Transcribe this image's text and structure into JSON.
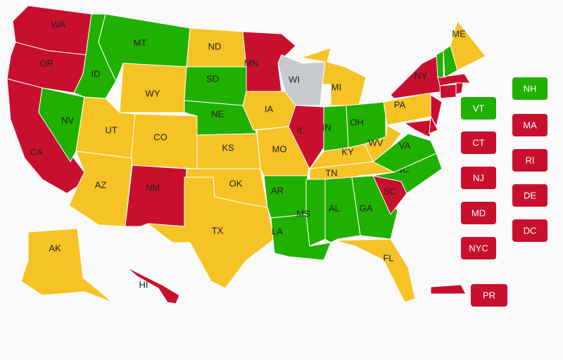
{
  "states": [
    {
      "label": "WA",
      "color": "#c8102e"
    },
    {
      "label": "OR",
      "color": "#c8102e"
    },
    {
      "label": "CA",
      "color": "#c8102e"
    },
    {
      "label": "NV",
      "color": "#20b000"
    },
    {
      "label": "ID",
      "color": "#20b000"
    },
    {
      "label": "MT",
      "color": "#20b000"
    },
    {
      "label": "WY",
      "color": "#f5c325"
    },
    {
      "label": "UT",
      "color": "#f5c325"
    },
    {
      "label": "CO",
      "color": "#f5c325"
    },
    {
      "label": "AZ",
      "color": "#f5c325"
    },
    {
      "label": "NM",
      "color": "#c8102e"
    },
    {
      "label": "ND",
      "color": "#f5c325"
    },
    {
      "label": "SD",
      "color": "#20b000"
    },
    {
      "label": "NE",
      "color": "#20b000"
    },
    {
      "label": "KS",
      "color": "#f5c325"
    },
    {
      "label": "OK",
      "color": "#f5c325"
    },
    {
      "label": "TX",
      "color": "#f5c325"
    },
    {
      "label": "MN",
      "color": "#c8102e"
    },
    {
      "label": "IA",
      "color": "#f5c325"
    },
    {
      "label": "MO",
      "color": "#f5c325"
    },
    {
      "label": "WI",
      "color": "#c8cbce"
    },
    {
      "label": "IL",
      "color": "#c8102e"
    },
    {
      "label": "MI",
      "color": "#f5c325"
    },
    {
      "label": "IN",
      "color": "#20b000"
    },
    {
      "label": "OH",
      "color": "#20b000"
    },
    {
      "label": "KY",
      "color": "#f5c325"
    },
    {
      "label": "TN",
      "color": "#f5c325"
    },
    {
      "label": "AR",
      "color": "#20b000"
    },
    {
      "label": "LA",
      "color": "#20b000"
    },
    {
      "label": "MS",
      "color": "#20b000"
    },
    {
      "label": "AL",
      "color": "#20b000"
    },
    {
      "label": "GA",
      "color": "#20b000"
    },
    {
      "label": "FL",
      "color": "#f5c325"
    },
    {
      "label": "SC",
      "color": "#c8102e"
    },
    {
      "label": "NC",
      "color": "#20b000"
    },
    {
      "label": "VA",
      "color": "#20b000"
    },
    {
      "label": "WV",
      "color": "#f5c325"
    },
    {
      "label": "PA",
      "color": "#f5c325"
    },
    {
      "label": "NY",
      "color": "#c8102e"
    },
    {
      "label": "MD",
      "color": "#c8102e"
    },
    {
      "label": "DE",
      "color": "#c8102e"
    },
    {
      "label": "NJ",
      "color": "#c8102e"
    },
    {
      "label": "CT",
      "color": "#c8102e"
    },
    {
      "label": "RI",
      "color": "#c8102e"
    },
    {
      "label": "MA",
      "color": "#c8102e"
    },
    {
      "label": "VT",
      "color": "#20b000"
    },
    {
      "label": "NH",
      "color": "#20b000"
    },
    {
      "label": "ME",
      "color": "#f5c325"
    },
    {
      "label": "AK",
      "color": "#f5c325"
    },
    {
      "label": "HI",
      "color": "#c8102e"
    },
    {
      "label": "PR",
      "color": "#c8102e"
    },
    {
      "label": "NYC",
      "color": "#c8102e"
    },
    {
      "label": "DC",
      "color": "#c8102e"
    }
  ]
}
